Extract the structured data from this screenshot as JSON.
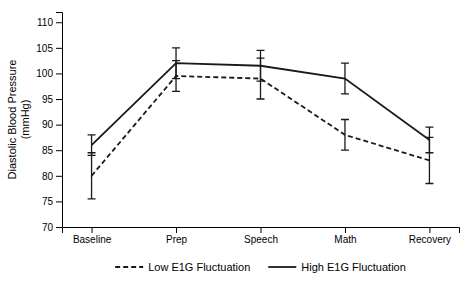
{
  "chart_data": {
    "type": "line",
    "categories": [
      "Baseline",
      "Prep",
      "Speech",
      "Math",
      "Recovery"
    ],
    "ylabel": "Diastolic Blood Pressure\n(mmHg)",
    "series": [
      {
        "name": "Low E1G Fluctuation",
        "color": "#1a1a1a",
        "line_style": "dashed",
        "values": [
          80,
          99.5,
          99,
          88,
          83
        ],
        "errors": [
          4.5,
          3,
          4,
          3,
          4.5
        ]
      },
      {
        "name": "High E1G Fluctuation",
        "color": "#1a1a1a",
        "line_style": "solid",
        "values": [
          86,
          102,
          101.5,
          99,
          87
        ],
        "errors": [
          2,
          3,
          3,
          3,
          2.5
        ]
      }
    ],
    "ylim": [
      70,
      112
    ],
    "yticks": [
      70,
      75,
      80,
      85,
      90,
      95,
      100,
      105,
      110
    ],
    "grid": false
  }
}
